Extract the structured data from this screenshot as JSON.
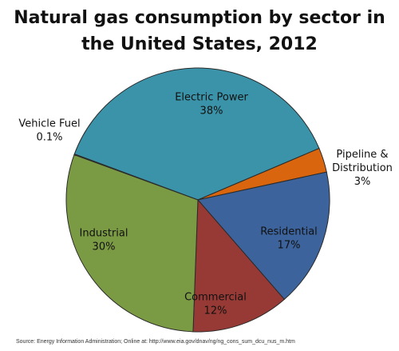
{
  "chart_data": {
    "type": "pie",
    "title_lines": [
      "Natural gas consumption  by sector in",
      "the United States, 2012"
    ],
    "start_category": "Vehicle Fuel",
    "slices": [
      {
        "category": "Vehicle Fuel",
        "label_lines": [
          "Vehicle Fuel",
          "0.1%"
        ],
        "value": 0.1,
        "color": "#4a6b2a"
      },
      {
        "category": "Electric Power",
        "label_lines": [
          "Electric Power",
          "38%"
        ],
        "value": 38,
        "color": "#3a93a8"
      },
      {
        "category": "Pipeline & Distribution",
        "label_lines": [
          "Pipeline &",
          "Distribution",
          "3%"
        ],
        "value": 3,
        "color": "#d9660f"
      },
      {
        "category": "Residential",
        "label_lines": [
          "Residential",
          "17%"
        ],
        "value": 17,
        "color": "#3c639b"
      },
      {
        "category": "Commercial",
        "label_lines": [
          "Commercial",
          "12%"
        ],
        "value": 12,
        "color": "#973a35"
      },
      {
        "category": "Industrial",
        "label_lines": [
          "Industrial",
          "30%"
        ],
        "value": 30,
        "color": "#7b9a44"
      }
    ],
    "legend": "none"
  },
  "source": "Source: Energy Information Administration; Online at: http://www.eia.gov/dnav/ng/ng_cons_sum_dcu_nus_m.htm"
}
